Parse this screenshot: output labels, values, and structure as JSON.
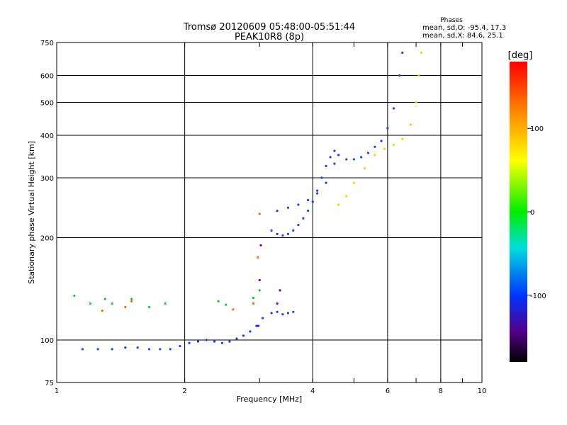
{
  "chart_data": {
    "type": "scatter",
    "title": "Tromsø 20120609 05:48:00-05:51:44",
    "subtitle": "PEAK10R8 (8p)",
    "xlabel": "Frequency [MHz]",
    "ylabel": "Stationary phase Virtual Height [km]",
    "x_scale": "log",
    "y_scale": "log",
    "xlim": [
      1,
      10
    ],
    "ylim": [
      75,
      750
    ],
    "x_ticks": [
      1,
      2,
      4,
      6,
      8,
      10
    ],
    "x_tick_labels": [
      "1",
      "2",
      "4",
      "6",
      "8",
      "10"
    ],
    "y_ticks": [
      75,
      100,
      200,
      300,
      400,
      500,
      600,
      750
    ],
    "y_tick_labels": [
      "75",
      "100",
      "200",
      "300",
      "400",
      "500",
      "600",
      "750"
    ],
    "grid": true,
    "color_encodes": "phase [deg]",
    "colorbar": {
      "label": "[deg]",
      "range": [
        -180,
        180
      ],
      "ticks": [
        100,
        0,
        -100
      ],
      "tick_labels": [
        "100",
        "0",
        "-100"
      ]
    },
    "phase_stats": {
      "title": "Phases",
      "o_line": "mean, sd,O: -95.4, 17.3",
      "x_line": "mean, sd,X: 84.6, 25.1"
    },
    "series": [
      {
        "phase": -95,
        "color": "#1a3cff",
        "freq": [
          1.15,
          1.25,
          1.35,
          1.45,
          1.55,
          1.65,
          1.75,
          1.85,
          1.95,
          2.05,
          2.15,
          2.25,
          2.35,
          2.45,
          2.55,
          2.65,
          2.75,
          2.85,
          2.95,
          3.05
        ],
        "height": [
          94,
          94,
          94,
          95,
          95,
          94,
          94,
          94,
          96,
          98,
          99,
          100,
          99,
          98,
          99,
          101,
          103,
          106,
          110,
          116
        ]
      },
      {
        "phase": -95,
        "color": "#1a3cff",
        "freq": [
          3.2,
          3.3,
          3.4,
          3.5,
          3.6,
          3.7,
          3.8,
          3.9,
          4.0,
          4.1,
          4.2,
          4.3,
          4.4,
          4.5,
          4.6,
          4.8,
          5.0,
          5.2,
          5.4,
          5.6,
          5.8,
          6.0,
          6.2,
          6.4,
          6.5
        ],
        "height": [
          210,
          205,
          203,
          205,
          210,
          218,
          228,
          240,
          255,
          275,
          300,
          325,
          345,
          360,
          350,
          340,
          340,
          345,
          355,
          370,
          385,
          420,
          480,
          600,
          700
        ]
      },
      {
        "phase": -95,
        "color": "#1a3cff",
        "freq": [
          3.3,
          3.5,
          3.7,
          3.9,
          4.1,
          4.3,
          4.5
        ],
        "height": [
          240,
          245,
          250,
          258,
          270,
          290,
          330
        ]
      },
      {
        "phase": -95,
        "color": "#1a3cff",
        "freq": [
          3.2,
          3.3,
          3.4,
          3.5,
          3.6
        ],
        "height": [
          120,
          121,
          119,
          120,
          121
        ]
      },
      {
        "phase": 85,
        "color": "#e0e000",
        "freq": [
          4.6,
          4.8,
          5.0,
          5.3,
          5.6,
          5.9,
          6.2,
          6.5,
          6.8,
          7.0,
          7.1,
          7.2
        ],
        "height": [
          250,
          265,
          290,
          320,
          350,
          365,
          375,
          390,
          430,
          500,
          600,
          700
        ]
      },
      {
        "phase": 0,
        "color": "#11cc33",
        "freq": [
          1.1,
          1.2,
          1.3,
          1.35,
          1.5,
          1.65,
          1.8,
          2.4,
          2.5,
          2.9,
          3.0
        ],
        "height": [
          135,
          128,
          132,
          128,
          132,
          125,
          128,
          130,
          127,
          133,
          140
        ]
      },
      {
        "phase": 150,
        "color": "#ff6600",
        "freq": [
          1.28,
          1.45,
          1.5,
          2.6,
          2.9,
          2.97,
          3.0
        ],
        "height": [
          122,
          125,
          130,
          123,
          128,
          175,
          235
        ]
      },
      {
        "phase": -160,
        "color": "#770099",
        "freq": [
          2.98,
          3.0,
          3.02,
          3.3,
          3.35
        ],
        "height": [
          110,
          150,
          190,
          128,
          140
        ]
      }
    ]
  }
}
